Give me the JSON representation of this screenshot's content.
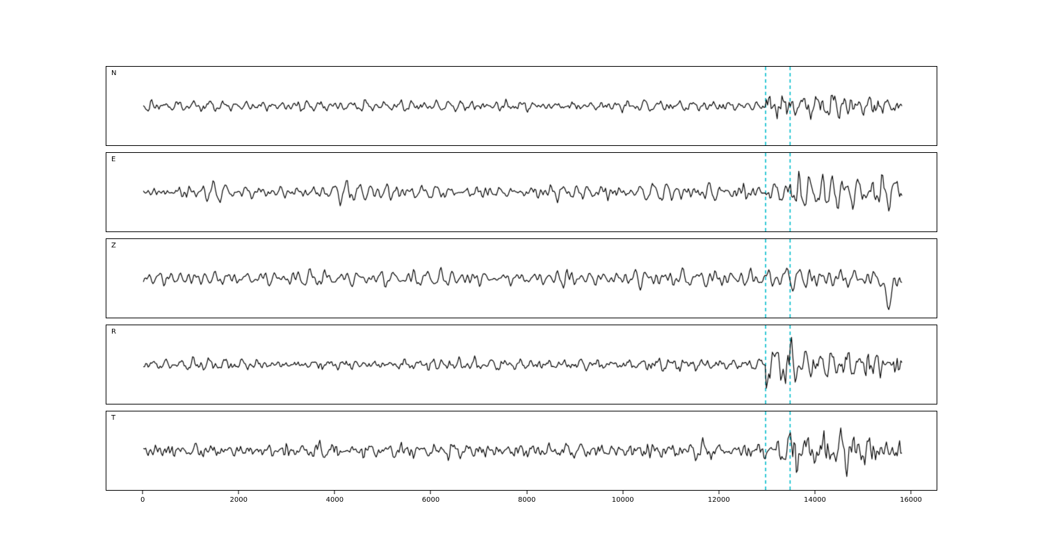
{
  "figure": {
    "background": "#ffffff"
  },
  "chart_data": {
    "type": "line",
    "title": "",
    "xlabel": "",
    "ylabel": "",
    "description": "Five stacked seismogram component traces (N, E, Z, R, T) of band-limited noise with an event onset near x=13000; two dashed cyan phase-marker lines cross all panels.",
    "x_axis": {
      "range": [
        -770,
        16550
      ],
      "ticks": [
        0,
        2000,
        4000,
        6000,
        8000,
        10000,
        12000,
        14000,
        16000
      ]
    },
    "signal_start": 0,
    "signal_end": 15800,
    "phase_markers": [
      12960,
      13470
    ],
    "colors": {
      "waveform": "#000000",
      "marker": "#00bccc",
      "axis": "#000000"
    },
    "grid": false,
    "legend_position": "none",
    "panels": [
      {
        "label": "N",
        "seed": 101,
        "base": 3.2,
        "grow": 0.3,
        "burst": 17,
        "tail": 8,
        "decay": 700,
        "burst_marker": 0
      },
      {
        "label": "E",
        "seed": 202,
        "base": 5.0,
        "grow": 0.25,
        "burst": 14,
        "tail": 11,
        "decay": 1500,
        "burst_marker": 1
      },
      {
        "label": "Z",
        "seed": 303,
        "base": 5.5,
        "grow": 0.15,
        "burst": 8,
        "tail": 7,
        "decay": 600,
        "burst_marker": 1,
        "spike": {
          "t": 15520,
          "amp": 40,
          "w": 90
        }
      },
      {
        "label": "R",
        "seed": 404,
        "base": 3.2,
        "grow": 0.3,
        "burst": 16,
        "tail": 8,
        "decay": 700,
        "burst_marker": 0
      },
      {
        "label": "T",
        "seed": 505,
        "base": 4.6,
        "grow": 0.25,
        "burst": 13,
        "tail": 10,
        "decay": 1400,
        "burst_marker": 1
      }
    ]
  }
}
